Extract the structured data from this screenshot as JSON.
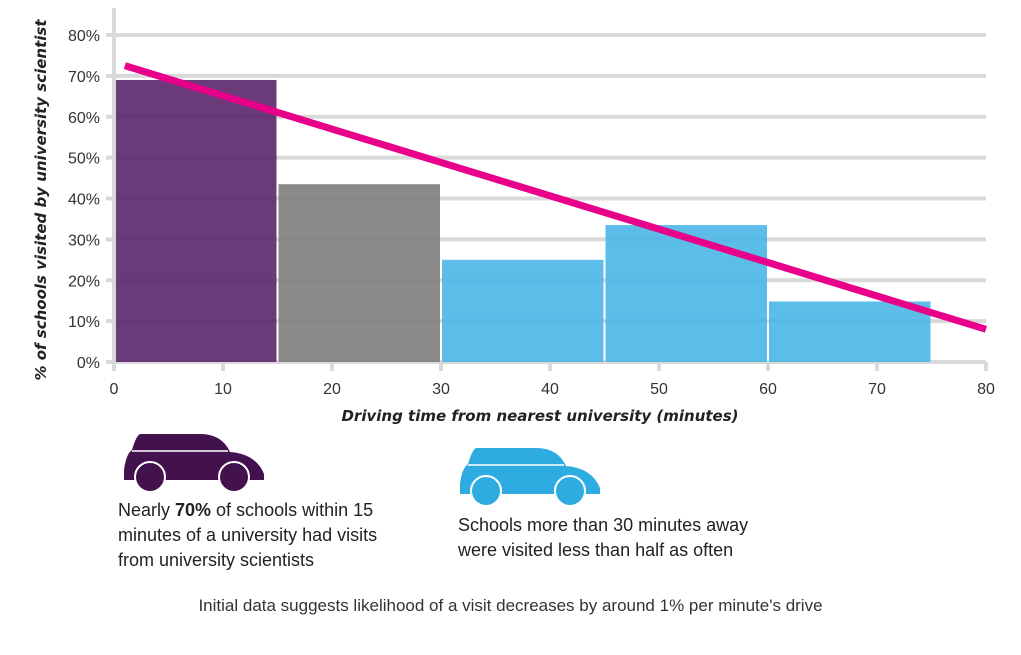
{
  "chart_data": {
    "type": "bar",
    "subtype": "histogram",
    "xlabel": "Driving time from nearest university (minutes)",
    "ylabel": "% of schools visited by university scientist",
    "xlim": [
      0,
      80
    ],
    "ylim": [
      0,
      80
    ],
    "x_ticks": [
      0,
      10,
      20,
      30,
      40,
      50,
      60,
      70,
      80
    ],
    "y_ticks": [
      0,
      10,
      20,
      30,
      40,
      50,
      60,
      70,
      80
    ],
    "y_tick_suffix": "%",
    "grid": "horizontal",
    "bins": [
      {
        "x0": 0,
        "x1": 15,
        "value": 69,
        "color": "#5e2a6e"
      },
      {
        "x0": 15,
        "x1": 30,
        "value": 43.5,
        "color": "#808080"
      },
      {
        "x0": 30,
        "x1": 45,
        "value": 25,
        "color": "#4db7e6"
      },
      {
        "x0": 45,
        "x1": 60,
        "value": 33.5,
        "color": "#4db7e6"
      },
      {
        "x0": 60,
        "x1": 75,
        "value": 14.8,
        "color": "#4db7e6"
      }
    ],
    "trendline": {
      "x": [
        1,
        80
      ],
      "y": [
        72.5,
        8
      ],
      "color": "#e8008a"
    }
  },
  "annotations": {
    "near": {
      "prefix": "Nearly ",
      "bold": "70%",
      "suffix": " of schools within 15 minutes of a university had visits from university scientists",
      "icon": "car-icon",
      "color": "#44114f"
    },
    "far": {
      "text": "Schools more than 30 minutes away were visited less than half as often",
      "icon": "car-icon",
      "color": "#2eace2"
    },
    "footer": "Initial data suggests likelihood of a visit decreases by around 1% per minute's drive"
  }
}
